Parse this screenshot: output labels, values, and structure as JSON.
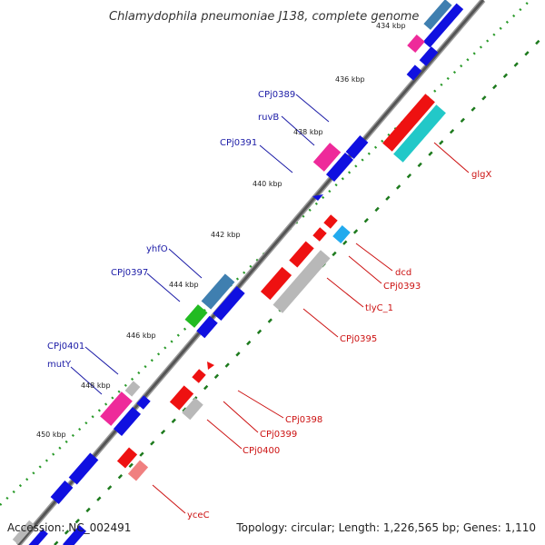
{
  "title": "Chlamydophila pneumoniae J138, complete genome",
  "footer": {
    "accession": "Accession: NC_002491",
    "summary": "Topology: circular; Length: 1,226,565 bp; Genes: 1,110"
  },
  "ticks": [
    "434 kbp",
    "436 kbp",
    "438 kbp",
    "440 kbp",
    "442 kbp",
    "444 kbp",
    "446 kbp",
    "448 kbp",
    "450 kbp"
  ],
  "forward_labels": [
    "CPj0389",
    "ruvB",
    "CPj0391",
    "yhfO",
    "CPj0397",
    "CPj0401",
    "mutY"
  ],
  "reverse_labels": [
    "glgX",
    "dcd",
    "CPj0393",
    "tlyC_1",
    "CPj0395",
    "CPj0398",
    "CPj0399",
    "CPj0400",
    "yceC"
  ],
  "colors": {
    "forward_gene": "#1010e0",
    "reverse_gene": "#ee1111",
    "pink_feature": "#ee2a9a",
    "steelblue_feature": "#3f7fb0",
    "green_feature": "#22bb22",
    "cyan_feature": "#22c8c8",
    "skyblue_feature": "#22aaee",
    "gray_feature": "#b8b8b8",
    "lightred_feature": "#f08080",
    "backbone": "#555555",
    "dotted_ring_forward": "#2a9a2a",
    "dotted_ring_reverse": "#1d7a1d"
  }
}
